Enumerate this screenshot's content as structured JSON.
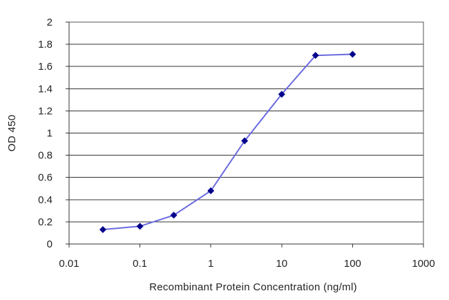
{
  "chart_data": {
    "type": "line",
    "title": "",
    "xlabel": "Recombinant Protein Concentration (ng/ml)",
    "ylabel": "OD 450",
    "xscale": "log",
    "xlim": [
      0.01,
      1000
    ],
    "ylim": [
      0,
      2
    ],
    "x_ticks": [
      0.01,
      0.1,
      1,
      10,
      100,
      1000
    ],
    "x_tick_labels": [
      "0.01",
      "0.1",
      "1",
      "10",
      "100",
      "1000"
    ],
    "y_ticks": [
      0,
      0.2,
      0.4,
      0.6,
      0.8,
      1,
      1.2,
      1.4,
      1.6,
      1.8,
      2
    ],
    "y_tick_labels": [
      "0",
      "0.2",
      "0.4",
      "0.6",
      "0.8",
      "1",
      "1.2",
      "1.4",
      "1.6",
      "1.8",
      "2"
    ],
    "grid": "horizontal",
    "legend": "none",
    "series": [
      {
        "x": [
          0.03,
          0.1,
          0.3,
          1,
          3,
          10,
          30,
          100
        ],
        "y": [
          0.13,
          0.16,
          0.26,
          0.48,
          0.93,
          1.35,
          1.7,
          1.71
        ],
        "color": "#00008b",
        "line_color": "#6a6ae0"
      }
    ],
    "plot_background": "#ffffff"
  }
}
